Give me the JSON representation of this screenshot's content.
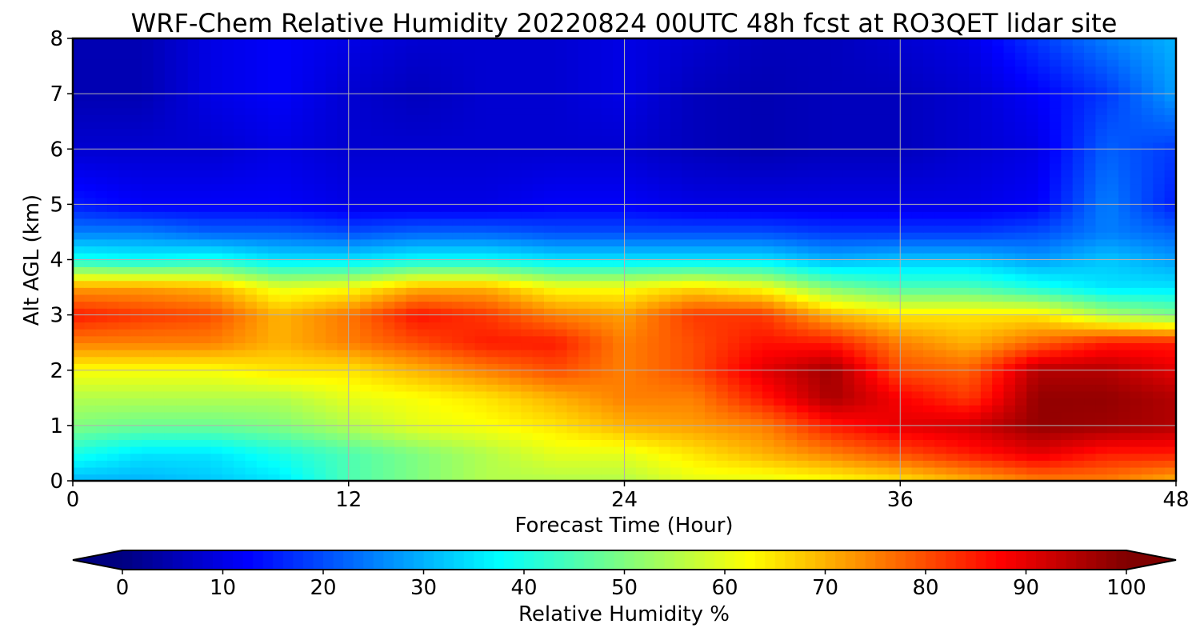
{
  "chart_data": {
    "type": "heatmap",
    "title": "WRF-Chem Relative Humidity 20220824 00UTC 48h fcst at RO3QET lidar site",
    "xlabel": "Forecast Time (Hour)",
    "ylabel": "Alt AGL (km)",
    "xlim": [
      0,
      48
    ],
    "ylim": [
      0,
      8
    ],
    "x_ticks": [
      0,
      12,
      24,
      36,
      48
    ],
    "y_ticks": [
      0,
      1,
      2,
      3,
      4,
      5,
      6,
      7,
      8
    ],
    "grid": true,
    "x_hours": [
      0,
      3,
      6,
      9,
      12,
      15,
      18,
      21,
      24,
      27,
      30,
      33,
      36,
      39,
      42,
      45,
      48
    ],
    "y_km": [
      0,
      0.5,
      1,
      1.5,
      2,
      2.5,
      3,
      3.5,
      4,
      4.5,
      5,
      6,
      7,
      8
    ],
    "values": [
      [
        30,
        30,
        32,
        35,
        45,
        50,
        55,
        55,
        55,
        60,
        60,
        62,
        65,
        70,
        75,
        75,
        70
      ],
      [
        40,
        35,
        35,
        40,
        45,
        50,
        55,
        60,
        60,
        65,
        70,
        75,
        80,
        85,
        90,
        85,
        85
      ],
      [
        50,
        48,
        48,
        50,
        55,
        60,
        62,
        65,
        70,
        72,
        75,
        85,
        90,
        92,
        98,
        97,
        95
      ],
      [
        55,
        55,
        55,
        55,
        60,
        62,
        65,
        70,
        75,
        75,
        85,
        96,
        88,
        82,
        98,
        98,
        95
      ],
      [
        62,
        62,
        62,
        65,
        65,
        70,
        75,
        80,
        75,
        80,
        90,
        97,
        80,
        78,
        95,
        95,
        90
      ],
      [
        75,
        75,
        75,
        70,
        75,
        80,
        85,
        85,
        75,
        80,
        86,
        85,
        75,
        70,
        78,
        85,
        85
      ],
      [
        85,
        82,
        80,
        70,
        76,
        86,
        82,
        75,
        72,
        82,
        82,
        70,
        65,
        65,
        65,
        55,
        50
      ],
      [
        72,
        72,
        70,
        60,
        62,
        70,
        70,
        62,
        62,
        66,
        62,
        50,
        45,
        45,
        40,
        35,
        35
      ],
      [
        40,
        38,
        40,
        35,
        35,
        38,
        38,
        35,
        35,
        35,
        35,
        30,
        32,
        32,
        28,
        32,
        28
      ],
      [
        25,
        25,
        22,
        22,
        20,
        22,
        22,
        20,
        20,
        20,
        20,
        18,
        18,
        18,
        20,
        25,
        22
      ],
      [
        15,
        12,
        12,
        12,
        10,
        10,
        10,
        12,
        12,
        10,
        10,
        10,
        10,
        10,
        12,
        25,
        15
      ],
      [
        8,
        8,
        8,
        10,
        8,
        8,
        8,
        8,
        8,
        6,
        5,
        6,
        6,
        8,
        10,
        22,
        18
      ],
      [
        5,
        5,
        10,
        12,
        8,
        6,
        8,
        8,
        10,
        6,
        5,
        6,
        6,
        8,
        12,
        18,
        28
      ],
      [
        5,
        5,
        10,
        12,
        10,
        8,
        8,
        8,
        10,
        8,
        6,
        6,
        8,
        10,
        18,
        25,
        30
      ]
    ],
    "colorbar": {
      "label": "Relative Humidity %",
      "min": 0,
      "max": 100,
      "ticks": [
        0,
        10,
        20,
        30,
        40,
        50,
        60,
        70,
        80,
        90,
        100
      ],
      "extend": "both",
      "colormap": "jet"
    }
  }
}
